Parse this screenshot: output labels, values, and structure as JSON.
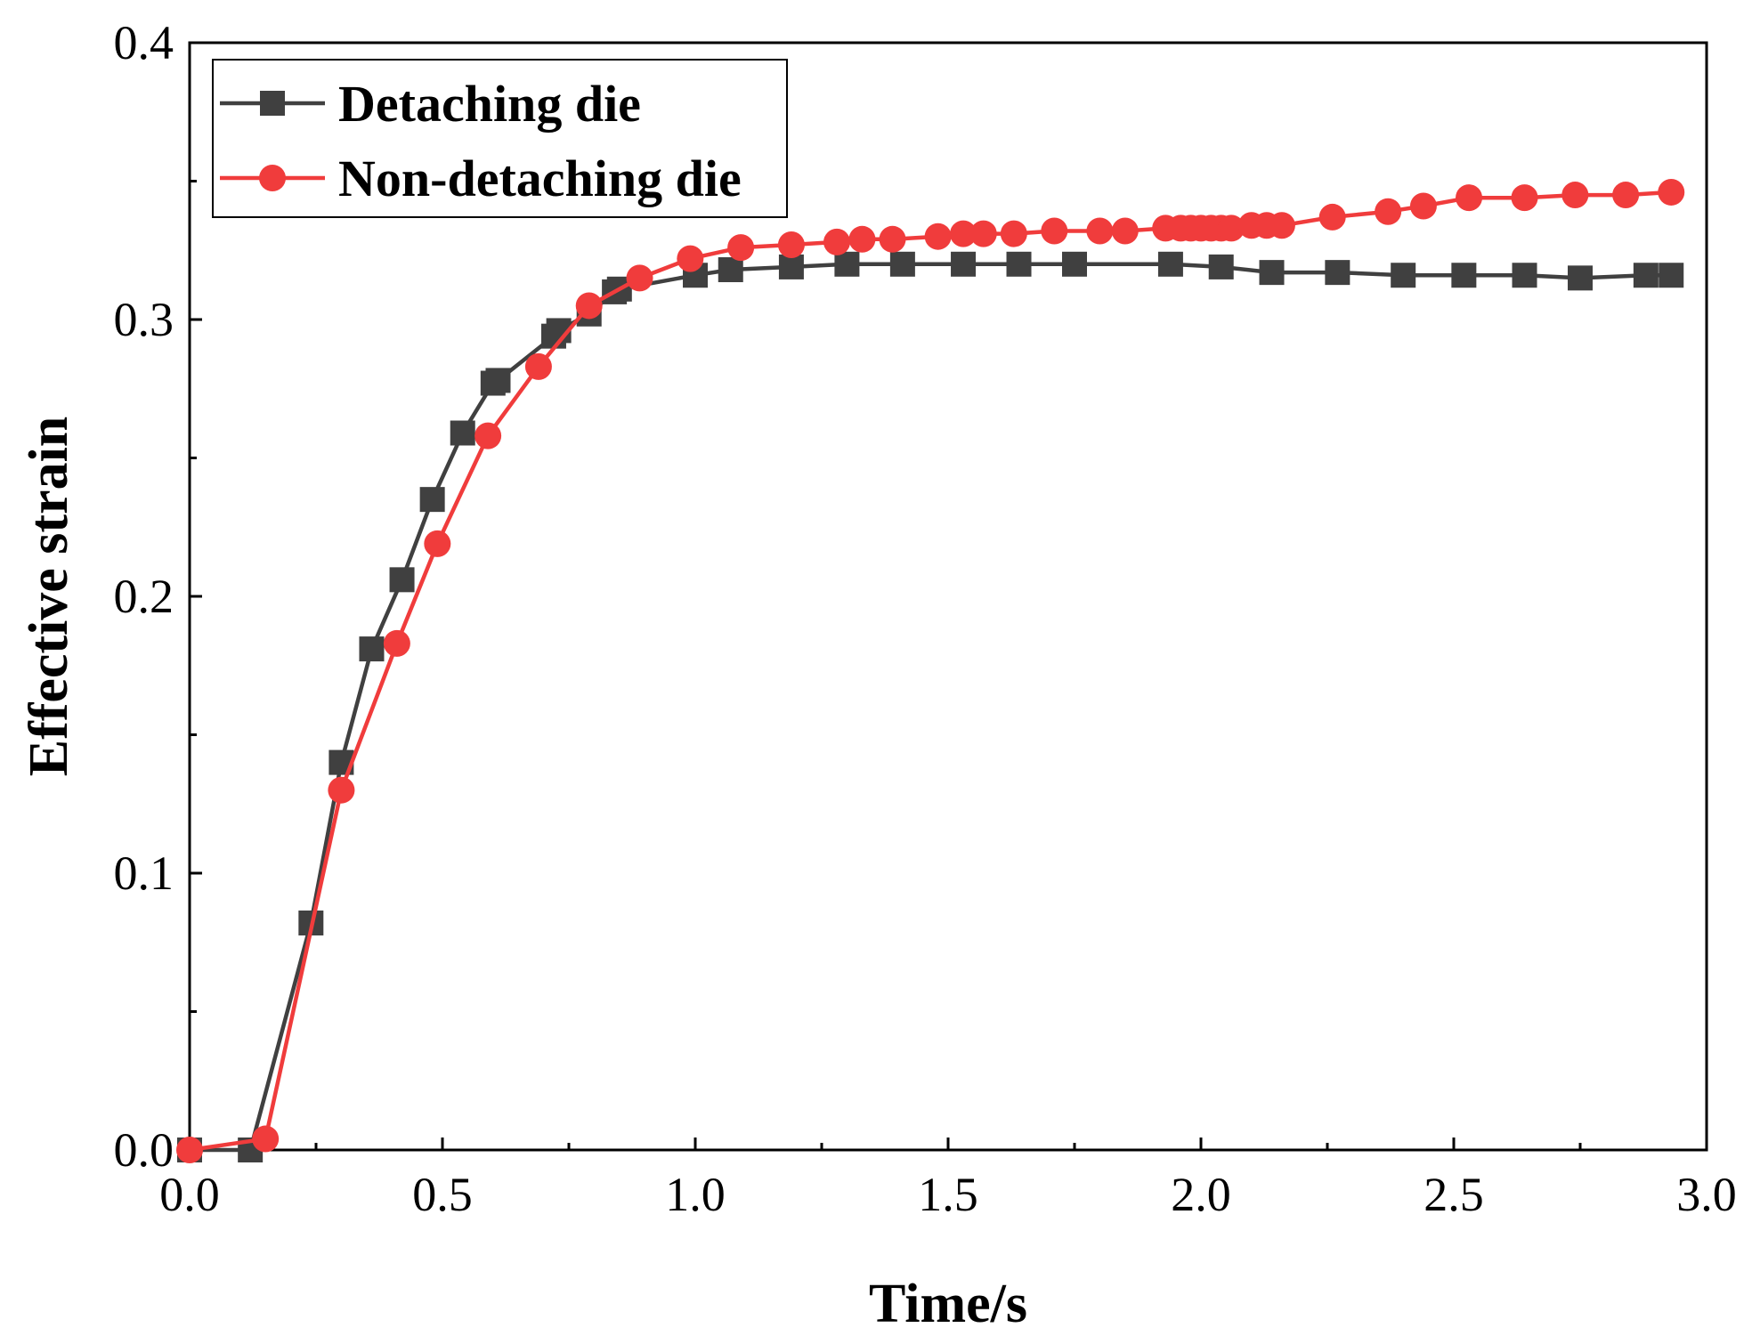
{
  "chart_data": {
    "type": "line",
    "title": "",
    "xlabel": "Time/s",
    "ylabel": "Effective strain",
    "xlim": [
      0.0,
      3.0
    ],
    "ylim": [
      0.0,
      0.4
    ],
    "x_ticks": [
      "0.0",
      "0.5",
      "1.0",
      "1.5",
      "2.0",
      "2.5",
      "3.0"
    ],
    "y_ticks": [
      "0.0",
      "0.1",
      "0.2",
      "0.3",
      "0.4"
    ],
    "legend_position": "top-left",
    "grid": false,
    "series": [
      {
        "name": "Detaching die",
        "color": "#404040",
        "marker": "square",
        "x": [
          0.0,
          0.12,
          0.24,
          0.3,
          0.36,
          0.42,
          0.48,
          0.54,
          0.6,
          0.61,
          0.72,
          0.73,
          0.79,
          0.84,
          0.85,
          1.0,
          1.07,
          1.19,
          1.3,
          1.41,
          1.53,
          1.64,
          1.75,
          1.94,
          2.04,
          2.14,
          2.27,
          2.4,
          2.52,
          2.64,
          2.75,
          2.88,
          2.93
        ],
        "values": [
          0.0,
          0.0,
          0.082,
          0.14,
          0.181,
          0.206,
          0.235,
          0.259,
          0.277,
          0.278,
          0.294,
          0.296,
          0.302,
          0.31,
          0.311,
          0.316,
          0.318,
          0.319,
          0.32,
          0.32,
          0.32,
          0.32,
          0.32,
          0.32,
          0.319,
          0.317,
          0.317,
          0.316,
          0.316,
          0.316,
          0.315,
          0.316,
          0.316
        ]
      },
      {
        "name": "Non-detaching die",
        "color": "#f03c3c",
        "marker": "circle",
        "x": [
          0.0,
          0.15,
          0.3,
          0.41,
          0.49,
          0.59,
          0.69,
          0.79,
          0.89,
          0.99,
          1.09,
          1.19,
          1.28,
          1.33,
          1.39,
          1.48,
          1.53,
          1.57,
          1.63,
          1.71,
          1.8,
          1.85,
          1.93,
          1.96,
          1.98,
          2.0,
          2.02,
          2.04,
          2.06,
          2.1,
          2.13,
          2.16,
          2.26,
          2.37,
          2.44,
          2.53,
          2.64,
          2.74,
          2.84,
          2.93
        ],
        "values": [
          0.0,
          0.004,
          0.13,
          0.183,
          0.219,
          0.258,
          0.283,
          0.305,
          0.315,
          0.322,
          0.326,
          0.327,
          0.328,
          0.329,
          0.329,
          0.33,
          0.331,
          0.331,
          0.331,
          0.332,
          0.332,
          0.332,
          0.333,
          0.333,
          0.333,
          0.333,
          0.333,
          0.333,
          0.333,
          0.334,
          0.334,
          0.334,
          0.337,
          0.339,
          0.341,
          0.344,
          0.344,
          0.345,
          0.345,
          0.346
        ]
      }
    ]
  }
}
